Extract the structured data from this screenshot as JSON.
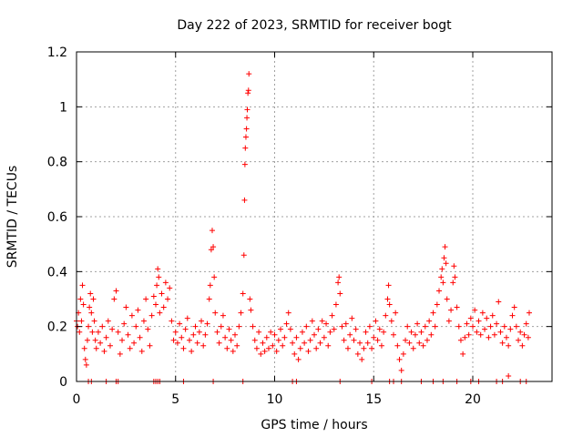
{
  "chart_data": {
    "type": "scatter",
    "title": "Day 222 of 2023, SRMTID for receiver bogt",
    "xlabel": "GPS time / hours",
    "ylabel": "SRMTID / TECUs",
    "xlim": [
      0,
      24
    ],
    "ylim": [
      0,
      1.2
    ],
    "x_ticks": [
      0,
      5,
      10,
      15,
      20
    ],
    "x_tick_labels": [
      "0",
      "5",
      "10",
      "15",
      "20"
    ],
    "y_ticks": [
      0,
      0.2,
      0.4,
      0.6,
      0.8,
      1.0,
      1.2
    ],
    "y_tick_labels": [
      "0",
      "0.2",
      "0.4",
      "0.6",
      "0.8",
      "1",
      "1.2"
    ],
    "grid": true,
    "marker": "plus",
    "series": [
      {
        "name": "SRMTID",
        "color": "#ff0000",
        "points": [
          [
            0.0,
            0.22
          ],
          [
            0.05,
            0.2
          ],
          [
            0.1,
            0.25
          ],
          [
            0.15,
            0.18
          ],
          [
            0.2,
            0.3
          ],
          [
            0.25,
            0.22
          ],
          [
            0.3,
            0.35
          ],
          [
            0.35,
            0.28
          ],
          [
            0.4,
            0.12
          ],
          [
            0.45,
            0.08
          ],
          [
            0.5,
            0.06
          ],
          [
            0.55,
            0.15
          ],
          [
            0.6,
            0.2
          ],
          [
            0.65,
            0.27
          ],
          [
            0.7,
            0.32
          ],
          [
            0.75,
            0.25
          ],
          [
            0.8,
            0.18
          ],
          [
            0.85,
            0.3
          ],
          [
            0.9,
            0.22
          ],
          [
            0.95,
            0.15
          ],
          [
            1.0,
            0.12
          ],
          [
            1.1,
            0.18
          ],
          [
            1.2,
            0.14
          ],
          [
            1.3,
            0.2
          ],
          [
            1.4,
            0.11
          ],
          [
            1.5,
            0.16
          ],
          [
            1.6,
            0.22
          ],
          [
            1.7,
            0.13
          ],
          [
            1.8,
            0.19
          ],
          [
            1.9,
            0.3
          ],
          [
            2.0,
            0.33
          ],
          [
            2.1,
            0.18
          ],
          [
            2.2,
            0.1
          ],
          [
            2.3,
            0.15
          ],
          [
            2.4,
            0.21
          ],
          [
            2.5,
            0.27
          ],
          [
            2.6,
            0.17
          ],
          [
            2.7,
            0.12
          ],
          [
            2.8,
            0.24
          ],
          [
            2.9,
            0.14
          ],
          [
            3.0,
            0.2
          ],
          [
            3.1,
            0.26
          ],
          [
            3.2,
            0.16
          ],
          [
            3.3,
            0.11
          ],
          [
            3.4,
            0.22
          ],
          [
            3.5,
            0.3
          ],
          [
            3.6,
            0.19
          ],
          [
            3.7,
            0.13
          ],
          [
            3.8,
            0.24
          ],
          [
            3.9,
            0.31
          ],
          [
            4.0,
            0.28
          ],
          [
            4.05,
            0.35
          ],
          [
            4.1,
            0.41
          ],
          [
            4.15,
            0.38
          ],
          [
            4.2,
            0.25
          ],
          [
            4.3,
            0.32
          ],
          [
            4.4,
            0.27
          ],
          [
            4.5,
            0.36
          ],
          [
            4.6,
            0.3
          ],
          [
            4.7,
            0.34
          ],
          [
            4.8,
            0.22
          ],
          [
            4.9,
            0.15
          ],
          [
            5.0,
            0.18
          ],
          [
            5.1,
            0.14
          ],
          [
            5.2,
            0.21
          ],
          [
            5.3,
            0.16
          ],
          [
            5.4,
            0.12
          ],
          [
            5.5,
            0.19
          ],
          [
            5.6,
            0.23
          ],
          [
            5.7,
            0.15
          ],
          [
            5.8,
            0.11
          ],
          [
            5.9,
            0.17
          ],
          [
            6.0,
            0.2
          ],
          [
            6.1,
            0.14
          ],
          [
            6.2,
            0.18
          ],
          [
            6.3,
            0.22
          ],
          [
            6.4,
            0.13
          ],
          [
            6.5,
            0.17
          ],
          [
            6.6,
            0.21
          ],
          [
            6.7,
            0.3
          ],
          [
            6.75,
            0.35
          ],
          [
            6.8,
            0.48
          ],
          [
            6.85,
            0.55
          ],
          [
            6.9,
            0.49
          ],
          [
            6.95,
            0.38
          ],
          [
            7.0,
            0.25
          ],
          [
            7.1,
            0.18
          ],
          [
            7.2,
            0.14
          ],
          [
            7.3,
            0.2
          ],
          [
            7.4,
            0.24
          ],
          [
            7.5,
            0.16
          ],
          [
            7.6,
            0.12
          ],
          [
            7.7,
            0.19
          ],
          [
            7.8,
            0.15
          ],
          [
            7.9,
            0.11
          ],
          [
            8.0,
            0.17
          ],
          [
            8.1,
            0.13
          ],
          [
            8.2,
            0.2
          ],
          [
            8.3,
            0.25
          ],
          [
            8.4,
            0.32
          ],
          [
            8.45,
            0.46
          ],
          [
            8.48,
            0.66
          ],
          [
            8.5,
            0.79
          ],
          [
            8.52,
            0.85
          ],
          [
            8.55,
            0.89
          ],
          [
            8.58,
            0.92
          ],
          [
            8.6,
            0.96
          ],
          [
            8.62,
            0.99
          ],
          [
            8.65,
            1.05
          ],
          [
            8.68,
            1.06
          ],
          [
            8.7,
            1.12
          ],
          [
            8.75,
            0.3
          ],
          [
            8.8,
            0.26
          ],
          [
            8.9,
            0.2
          ],
          [
            9.0,
            0.15
          ],
          [
            9.1,
            0.12
          ],
          [
            9.2,
            0.18
          ],
          [
            9.3,
            0.1
          ],
          [
            9.4,
            0.14
          ],
          [
            9.5,
            0.11
          ],
          [
            9.6,
            0.16
          ],
          [
            9.7,
            0.12
          ],
          [
            9.8,
            0.18
          ],
          [
            9.9,
            0.13
          ],
          [
            10.0,
            0.17
          ],
          [
            10.1,
            0.11
          ],
          [
            10.2,
            0.15
          ],
          [
            10.3,
            0.19
          ],
          [
            10.4,
            0.13
          ],
          [
            10.5,
            0.16
          ],
          [
            10.6,
            0.21
          ],
          [
            10.7,
            0.25
          ],
          [
            10.8,
            0.19
          ],
          [
            10.9,
            0.14
          ],
          [
            11.0,
            0.1
          ],
          [
            11.1,
            0.16
          ],
          [
            11.2,
            0.08
          ],
          [
            11.3,
            0.12
          ],
          [
            11.4,
            0.18
          ],
          [
            11.5,
            0.14
          ],
          [
            11.6,
            0.2
          ],
          [
            11.7,
            0.11
          ],
          [
            11.8,
            0.15
          ],
          [
            11.9,
            0.22
          ],
          [
            12.0,
            0.17
          ],
          [
            12.1,
            0.12
          ],
          [
            12.2,
            0.19
          ],
          [
            12.3,
            0.14
          ],
          [
            12.4,
            0.22
          ],
          [
            12.5,
            0.16
          ],
          [
            12.6,
            0.21
          ],
          [
            12.7,
            0.13
          ],
          [
            12.8,
            0.18
          ],
          [
            12.9,
            0.24
          ],
          [
            13.0,
            0.19
          ],
          [
            13.1,
            0.28
          ],
          [
            13.2,
            0.36
          ],
          [
            13.25,
            0.38
          ],
          [
            13.3,
            0.32
          ],
          [
            13.4,
            0.2
          ],
          [
            13.5,
            0.15
          ],
          [
            13.6,
            0.21
          ],
          [
            13.7,
            0.12
          ],
          [
            13.8,
            0.17
          ],
          [
            13.9,
            0.23
          ],
          [
            14.0,
            0.15
          ],
          [
            14.1,
            0.19
          ],
          [
            14.2,
            0.1
          ],
          [
            14.3,
            0.14
          ],
          [
            14.4,
            0.08
          ],
          [
            14.5,
            0.12
          ],
          [
            14.6,
            0.18
          ],
          [
            14.7,
            0.14
          ],
          [
            14.8,
            0.2
          ],
          [
            14.9,
            0.12
          ],
          [
            15.0,
            0.16
          ],
          [
            15.1,
            0.22
          ],
          [
            15.2,
            0.15
          ],
          [
            15.3,
            0.19
          ],
          [
            15.4,
            0.13
          ],
          [
            15.5,
            0.18
          ],
          [
            15.6,
            0.24
          ],
          [
            15.7,
            0.3
          ],
          [
            15.75,
            0.35
          ],
          [
            15.8,
            0.28
          ],
          [
            15.9,
            0.22
          ],
          [
            16.0,
            0.17
          ],
          [
            16.1,
            0.25
          ],
          [
            16.2,
            0.13
          ],
          [
            16.3,
            0.08
          ],
          [
            16.4,
            0.04
          ],
          [
            16.5,
            0.1
          ],
          [
            16.6,
            0.15
          ],
          [
            16.7,
            0.2
          ],
          [
            16.8,
            0.14
          ],
          [
            16.9,
            0.18
          ],
          [
            17.0,
            0.12
          ],
          [
            17.1,
            0.17
          ],
          [
            17.2,
            0.21
          ],
          [
            17.3,
            0.14
          ],
          [
            17.4,
            0.18
          ],
          [
            17.5,
            0.13
          ],
          [
            17.6,
            0.2
          ],
          [
            17.7,
            0.15
          ],
          [
            17.8,
            0.22
          ],
          [
            17.9,
            0.17
          ],
          [
            18.0,
            0.25
          ],
          [
            18.1,
            0.2
          ],
          [
            18.2,
            0.28
          ],
          [
            18.3,
            0.33
          ],
          [
            18.4,
            0.38
          ],
          [
            18.45,
            0.41
          ],
          [
            18.5,
            0.36
          ],
          [
            18.55,
            0.45
          ],
          [
            18.6,
            0.49
          ],
          [
            18.65,
            0.43
          ],
          [
            18.7,
            0.3
          ],
          [
            18.8,
            0.22
          ],
          [
            18.9,
            0.26
          ],
          [
            19.0,
            0.36
          ],
          [
            19.05,
            0.42
          ],
          [
            19.1,
            0.38
          ],
          [
            19.2,
            0.27
          ],
          [
            19.3,
            0.2
          ],
          [
            19.4,
            0.15
          ],
          [
            19.5,
            0.1
          ],
          [
            19.6,
            0.16
          ],
          [
            19.7,
            0.21
          ],
          [
            19.8,
            0.17
          ],
          [
            19.9,
            0.23
          ],
          [
            20.0,
            0.2
          ],
          [
            20.1,
            0.26
          ],
          [
            20.2,
            0.18
          ],
          [
            20.3,
            0.22
          ],
          [
            20.4,
            0.17
          ],
          [
            20.5,
            0.25
          ],
          [
            20.6,
            0.19
          ],
          [
            20.7,
            0.23
          ],
          [
            20.8,
            0.16
          ],
          [
            20.9,
            0.2
          ],
          [
            21.0,
            0.24
          ],
          [
            21.1,
            0.17
          ],
          [
            21.2,
            0.21
          ],
          [
            21.3,
            0.29
          ],
          [
            21.4,
            0.18
          ],
          [
            21.5,
            0.14
          ],
          [
            21.6,
            0.2
          ],
          [
            21.7,
            0.16
          ],
          [
            21.8,
            0.13
          ],
          [
            21.9,
            0.19
          ],
          [
            22.0,
            0.24
          ],
          [
            22.1,
            0.27
          ],
          [
            22.2,
            0.2
          ],
          [
            22.3,
            0.15
          ],
          [
            22.4,
            0.18
          ],
          [
            22.5,
            0.13
          ],
          [
            22.6,
            0.17
          ],
          [
            22.7,
            0.21
          ],
          [
            22.8,
            0.16
          ],
          [
            22.85,
            0.25
          ],
          [
            0.6,
            0.0
          ],
          [
            0.75,
            0.0
          ],
          [
            1.5,
            0.0
          ],
          [
            2.0,
            0.0
          ],
          [
            2.1,
            0.0
          ],
          [
            3.9,
            0.0
          ],
          [
            4.0,
            0.0
          ],
          [
            4.1,
            0.0
          ],
          [
            4.2,
            0.0
          ],
          [
            5.4,
            0.0
          ],
          [
            6.9,
            0.0
          ],
          [
            8.4,
            0.0
          ],
          [
            10.9,
            0.0
          ],
          [
            11.1,
            0.0
          ],
          [
            13.3,
            0.0
          ],
          [
            14.9,
            0.0
          ],
          [
            15.8,
            0.0
          ],
          [
            16.0,
            0.0
          ],
          [
            16.4,
            0.0
          ],
          [
            17.4,
            0.0
          ],
          [
            18.0,
            0.0
          ],
          [
            18.5,
            0.0
          ],
          [
            19.2,
            0.0
          ],
          [
            19.9,
            0.0
          ],
          [
            20.3,
            0.0
          ],
          [
            21.2,
            0.0
          ],
          [
            21.5,
            0.0
          ],
          [
            21.8,
            0.02
          ],
          [
            22.4,
            0.0
          ],
          [
            22.7,
            0.0
          ]
        ]
      }
    ]
  }
}
